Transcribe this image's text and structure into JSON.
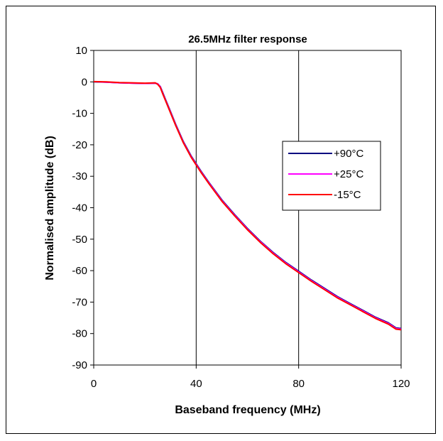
{
  "chart_data": {
    "type": "line",
    "title": "26.5MHz filter response",
    "xlabel": "Baseband frequency (MHz)",
    "ylabel": "Normalised amplitude (dB)",
    "xlim": [
      0,
      120
    ],
    "ylim": [
      -90,
      10
    ],
    "xticks": [
      0,
      40,
      80,
      120
    ],
    "yticks": [
      10,
      0,
      -10,
      -20,
      -30,
      -40,
      -50,
      -60,
      -70,
      -80,
      -90
    ],
    "vertical_grid": true,
    "horizontal_grid": false,
    "legend_position": "right",
    "series": [
      {
        "name": "+90°C",
        "color": "#000080",
        "x": [
          0,
          5,
          10,
          15,
          20,
          24,
          25,
          26,
          27,
          28,
          30,
          32,
          35,
          38,
          40,
          42,
          45,
          50,
          55,
          60,
          65,
          70,
          75,
          80,
          85,
          90,
          95,
          100,
          105,
          110,
          115,
          118,
          120
        ],
        "y": [
          0,
          -0.1,
          -0.3,
          -0.4,
          -0.5,
          -0.4,
          -0.6,
          -1.5,
          -3.5,
          -5.5,
          -9.5,
          -13.5,
          -19,
          -23.5,
          -26,
          -28.5,
          -32,
          -37.5,
          -42.2,
          -46.6,
          -50.6,
          -54.2,
          -57.4,
          -60.2,
          -63,
          -65.6,
          -68.2,
          -70.4,
          -72.6,
          -74.8,
          -76.6,
          -78.2,
          -78.4
        ]
      },
      {
        "name": "+25°C",
        "color": "#ff00ff",
        "x": [
          0,
          5,
          10,
          15,
          20,
          24,
          25,
          26,
          27,
          28,
          30,
          32,
          35,
          38,
          40,
          42,
          45,
          50,
          55,
          60,
          65,
          70,
          75,
          80,
          85,
          90,
          95,
          100,
          105,
          110,
          115,
          118,
          120
        ],
        "y": [
          0.1,
          -0.1,
          -0.3,
          -0.4,
          -0.5,
          -0.4,
          -0.6,
          -1.6,
          -3.7,
          -5.7,
          -9.7,
          -13.7,
          -19.2,
          -23.7,
          -26.2,
          -28.7,
          -32.2,
          -37.7,
          -42.4,
          -46.8,
          -50.8,
          -54.4,
          -57.6,
          -60.4,
          -63.2,
          -65.8,
          -68.4,
          -70.6,
          -72.8,
          -75,
          -76.8,
          -78.4,
          -78.6
        ]
      },
      {
        "name": "-15°C",
        "color": "#ff0000",
        "x": [
          0,
          5,
          10,
          15,
          20,
          24,
          25,
          26,
          27,
          28,
          30,
          32,
          35,
          38,
          40,
          42,
          45,
          50,
          55,
          60,
          65,
          70,
          75,
          80,
          85,
          90,
          95,
          100,
          105,
          110,
          115,
          118,
          120
        ],
        "y": [
          0.1,
          0,
          -0.2,
          -0.3,
          -0.4,
          -0.3,
          -0.8,
          -1.8,
          -3.9,
          -5.9,
          -9.9,
          -13.9,
          -19.4,
          -23.9,
          -26.4,
          -28.9,
          -32.4,
          -37.9,
          -42.6,
          -47,
          -51,
          -54.6,
          -57.8,
          -60.6,
          -63.4,
          -66,
          -68.6,
          -70.8,
          -73,
          -75.2,
          -77,
          -78.6,
          -78.8
        ]
      }
    ]
  }
}
